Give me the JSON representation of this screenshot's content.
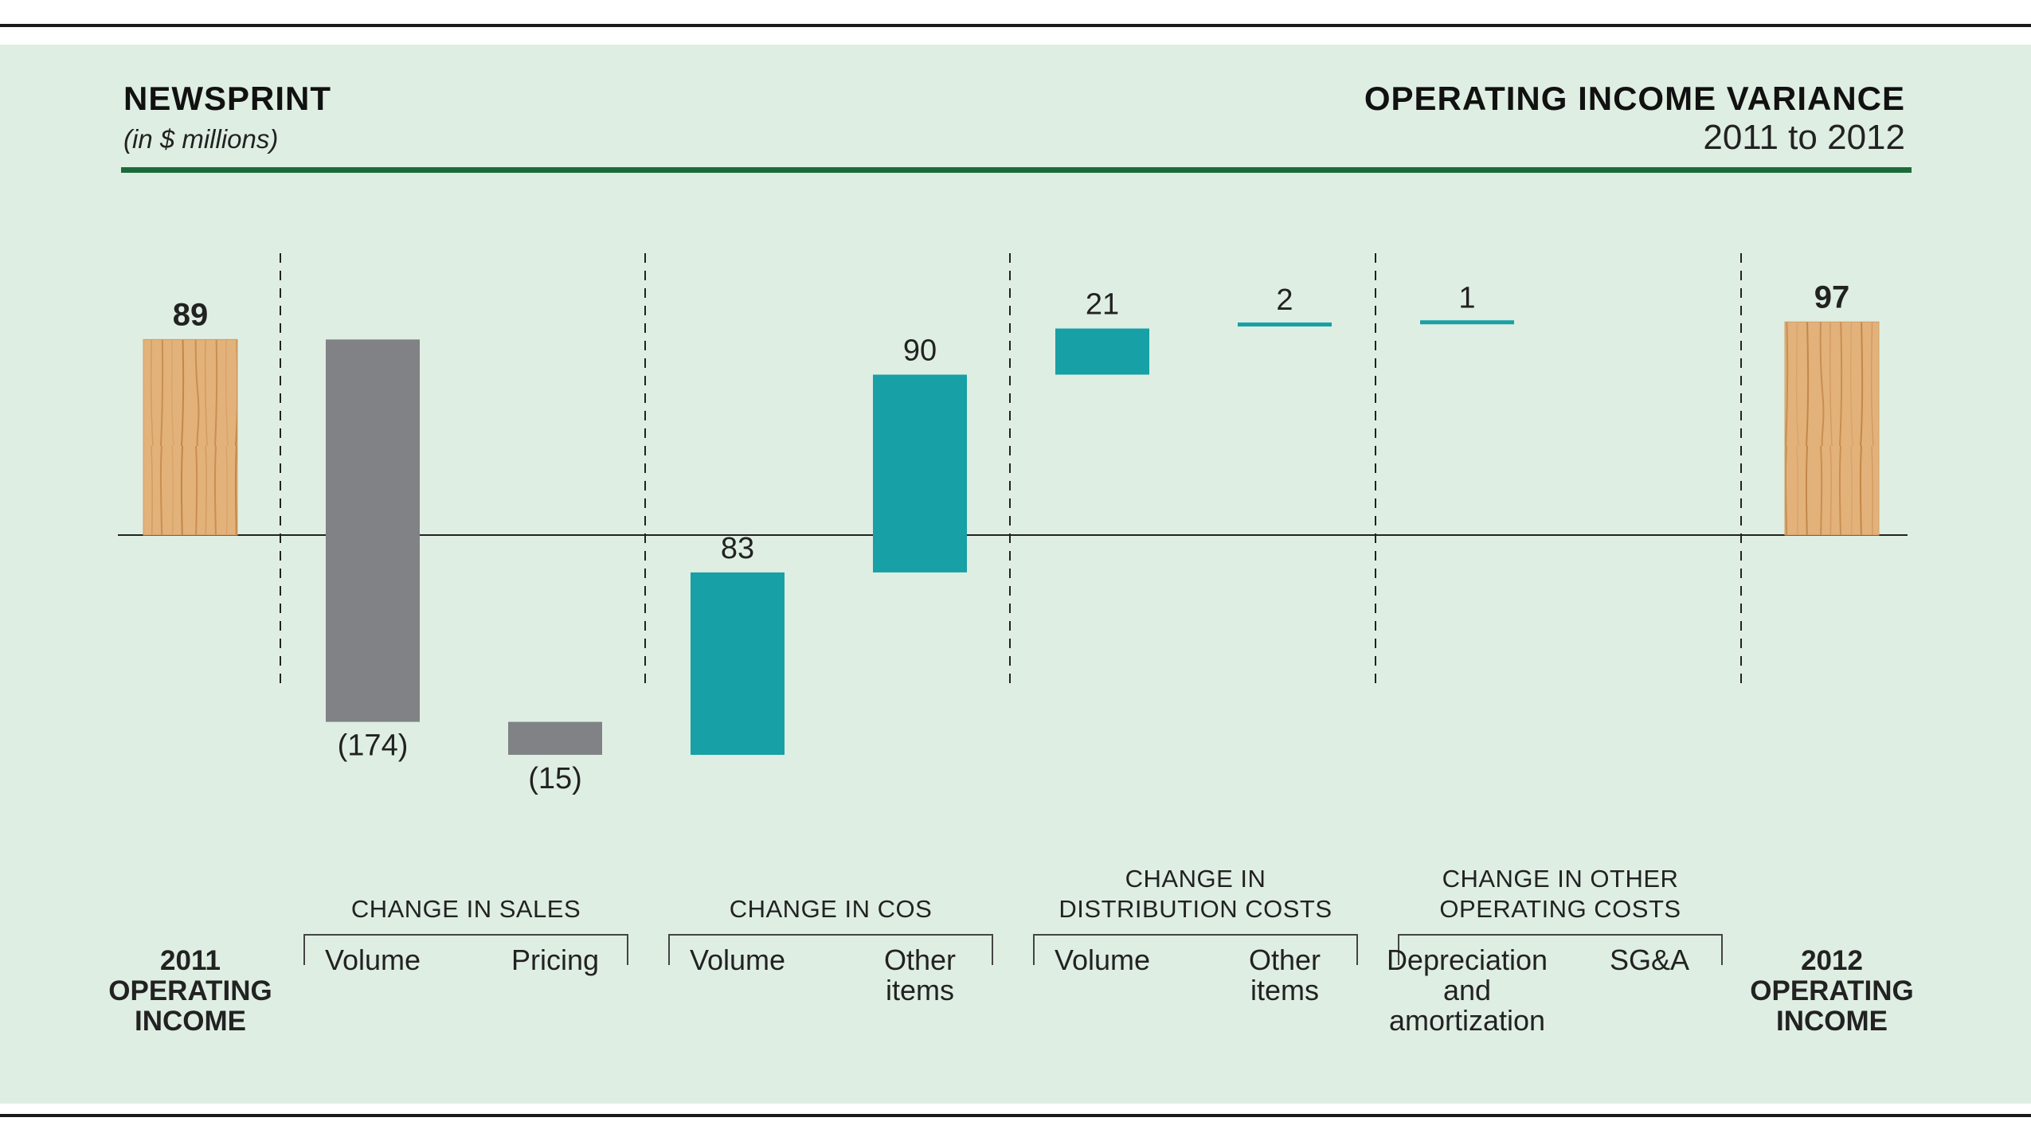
{
  "header": {
    "title": "NEWSPRINT",
    "subtitle": "(in $ millions)",
    "right_title": "OPERATING INCOME VARIANCE",
    "right_subtitle": "2011 to 2012"
  },
  "colors": {
    "background": "#dfeee2",
    "sales_bars": "#818285",
    "cost_bars": "#17a0a6",
    "wood_bars": "#e2b27a",
    "accent_rule": "#1b6b3a"
  },
  "chart_data": {
    "type": "waterfall",
    "y_range": [
      -235,
      115
    ],
    "bars": [
      {
        "category": "2011 OPERATING INCOME",
        "group": "",
        "delta": 89,
        "kind": "total",
        "label": "89"
      },
      {
        "category": "Volume",
        "group": "CHANGE IN SALES",
        "delta": -174,
        "kind": "sales",
        "label": "(174)"
      },
      {
        "category": "Pricing",
        "group": "CHANGE IN SALES",
        "delta": -15,
        "kind": "sales",
        "label": "(15)"
      },
      {
        "category": "Volume",
        "group": "CHANGE IN COS",
        "delta": 83,
        "kind": "cost",
        "label": "83"
      },
      {
        "category": "Other items",
        "group": "CHANGE IN COS",
        "delta": 90,
        "kind": "cost",
        "label": "90"
      },
      {
        "category": "Volume",
        "group": "CHANGE IN DISTRIBUTION COSTS",
        "delta": 21,
        "kind": "cost",
        "label": "21"
      },
      {
        "category": "Other items",
        "group": "CHANGE IN DISTRIBUTION COSTS",
        "delta": 2,
        "kind": "cost",
        "label": "2"
      },
      {
        "category": "Depreciation and amortization",
        "group": "CHANGE IN OTHER OPERATING COSTS",
        "delta": 1,
        "kind": "cost",
        "label": "1"
      },
      {
        "category": "SG&A",
        "group": "CHANGE IN OTHER OPERATING COSTS",
        "delta": 0,
        "kind": "cost",
        "label": ""
      },
      {
        "category": "2012 OPERATING INCOME",
        "group": "",
        "delta": 97,
        "kind": "total",
        "label": "97"
      }
    ],
    "groups": [
      {
        "lines": [
          "CHANGE IN SALES"
        ]
      },
      {
        "lines": [
          "CHANGE IN COS"
        ]
      },
      {
        "lines": [
          "CHANGE IN",
          "DISTRIBUTION COSTS"
        ]
      },
      {
        "lines": [
          "CHANGE IN OTHER",
          "OPERATING COSTS"
        ]
      }
    ],
    "sub_labels": [
      [
        "2011",
        "OPERATING",
        "INCOME"
      ],
      [
        "Volume"
      ],
      [
        "Pricing"
      ],
      [
        "Volume"
      ],
      [
        "Other",
        "items"
      ],
      [
        "Volume"
      ],
      [
        "Other",
        "items"
      ],
      [
        "Depreciation",
        "and",
        "amortization"
      ],
      [
        "SG&A"
      ],
      [
        "2012",
        "OPERATING",
        "INCOME"
      ]
    ]
  }
}
